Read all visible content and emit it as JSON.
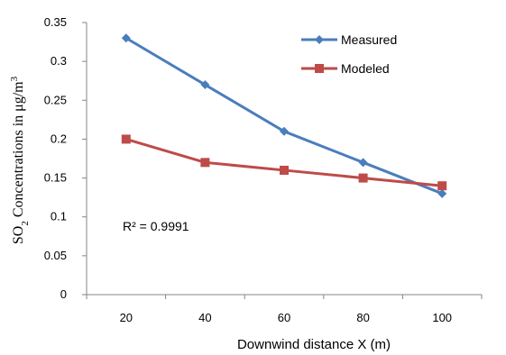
{
  "chart_data": {
    "type": "line",
    "x": [
      20,
      40,
      60,
      80,
      100
    ],
    "xlabel": "Downwind distance X (m)",
    "ylabel": {
      "base": "SO",
      "base_sub": "2",
      "mid": " Concentrations in μg/m",
      "unit_sup": "3"
    },
    "ylim": [
      0,
      0.35
    ],
    "yticks": [
      "0",
      "0.05",
      "0.1",
      "0.15",
      "0.2",
      "0.25",
      "0.3",
      "0.35"
    ],
    "xticks": [
      "20",
      "40",
      "60",
      "80",
      "100"
    ],
    "grid": false,
    "legend_position": "top-right",
    "series": [
      {
        "name": "Measured",
        "color": "#4a7ebb",
        "marker": "diamond",
        "values": [
          0.33,
          0.27,
          0.21,
          0.17,
          0.13
        ]
      },
      {
        "name": "Modeled",
        "color": "#be4b48",
        "marker": "square",
        "values": [
          0.2,
          0.17,
          0.16,
          0.15,
          0.14
        ]
      }
    ],
    "annotation": "R² = 0.9991"
  }
}
